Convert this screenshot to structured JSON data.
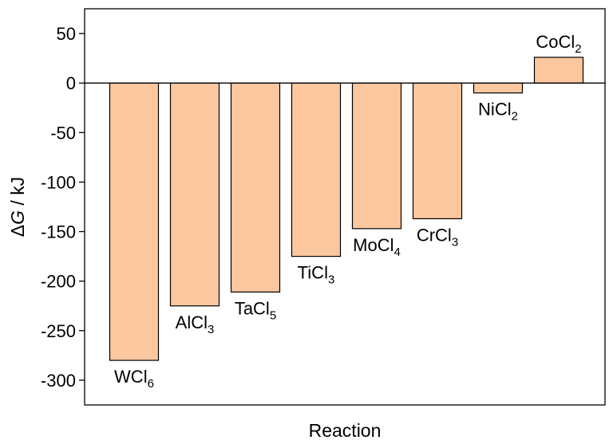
{
  "chart_data": {
    "type": "bar",
    "title": "",
    "xlabel": "Reaction",
    "ylabel_symbol": "ΔG",
    "ylabel_italic": "G",
    "ylabel_rest": " / kJ",
    "ylim": [
      -325,
      75
    ],
    "yticks": [
      50,
      0,
      -50,
      -100,
      -150,
      -200,
      -250,
      -300
    ],
    "grid": false,
    "bar_color": "#fbc79f",
    "bars": [
      {
        "label": "WCl",
        "sub": "6",
        "value": -280
      },
      {
        "label": "AlCl",
        "sub": "3",
        "value": -225
      },
      {
        "label": "TaCl",
        "sub": "5",
        "value": -211
      },
      {
        "label": "TiCl",
        "sub": "3",
        "value": -175
      },
      {
        "label": "MoCl",
        "sub": "4",
        "value": -147
      },
      {
        "label": "CrCl",
        "sub": "3",
        "value": -137
      },
      {
        "label": "NiCl",
        "sub": "2",
        "value": -10
      },
      {
        "label": "CoCl",
        "sub": "2",
        "value": 26
      }
    ]
  }
}
